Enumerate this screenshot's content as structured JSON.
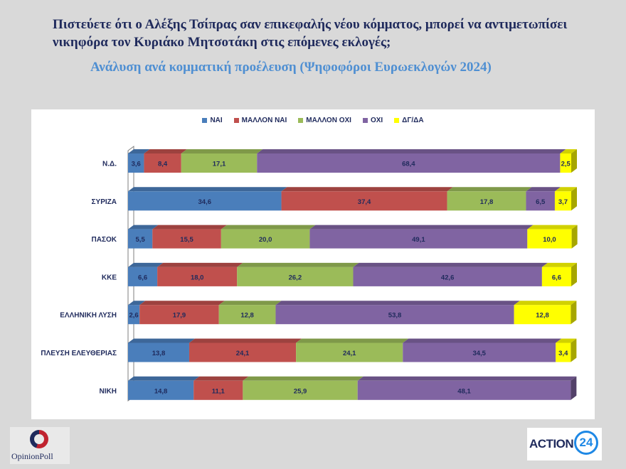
{
  "header": {
    "title": "Πιστεύετε ότι ο Αλέξης Τσίπρας σαν επικεφαλής νέου κόμματος, μπορεί να αντιμετωπίσει νικηφόρα τον Κυριάκο Μητσοτάκη στις επόμενες εκλογές;",
    "subtitle": "Ανάλυση ανά κομματική προέλευση (Ψηφοφόροι Ευρωεκλογών 2024)"
  },
  "logos": {
    "left": "OpinionPoll",
    "right_text": "ACTION",
    "right_number": "24"
  },
  "colors": {
    "nai": "#4a7ebb",
    "mallon_nai": "#c0504d",
    "mallon_oxi": "#9bbb59",
    "oxi": "#8064a2",
    "dgda": "#ffff00"
  },
  "chart_data": {
    "type": "bar",
    "orientation": "horizontal",
    "stacked": true,
    "categories": [
      "Ν.Δ.",
      "ΣΥΡΙΖΑ",
      "ΠΑΣΟΚ",
      "ΚΚΕ",
      "ΕΛΛΗΝΙΚΗ ΛΥΣΗ",
      "ΠΛΕΥΣΗ ΕΛΕΥΘΕΡΙΑΣ",
      "ΝΙΚΗ"
    ],
    "series": [
      {
        "name": "ΝΑΙ",
        "color": "#4a7ebb",
        "values": [
          3.6,
          34.6,
          5.5,
          6.6,
          2.6,
          13.8,
          14.8
        ],
        "labels": [
          "3,6",
          "34,6",
          "5,5",
          "6,6",
          "2,6",
          "13,8",
          "14,8"
        ]
      },
      {
        "name": "ΜΑΛΛΟΝ ΝΑΙ",
        "color": "#c0504d",
        "values": [
          8.4,
          37.4,
          15.5,
          18.0,
          17.9,
          24.1,
          11.1
        ],
        "labels": [
          "8,4",
          "37,4",
          "15,5",
          "18,0",
          "17,9",
          "24,1",
          "11,1"
        ]
      },
      {
        "name": "ΜΑΛΛΟΝ ΟΧΙ",
        "color": "#9bbb59",
        "values": [
          17.1,
          17.8,
          20.0,
          26.2,
          12.8,
          24.1,
          25.9
        ],
        "labels": [
          "17,1",
          "17,8",
          "20,0",
          "26,2",
          "12,8",
          "24,1",
          "25,9"
        ]
      },
      {
        "name": "ΟΧΙ",
        "color": "#8064a2",
        "values": [
          68.4,
          6.5,
          49.1,
          42.6,
          53.8,
          34.5,
          48.1
        ],
        "labels": [
          "68,4",
          "6,5",
          "49,1",
          "42,6",
          "53,8",
          "34,5",
          "48,1"
        ]
      },
      {
        "name": "ΔΓ/ΔΑ",
        "color": "#ffff00",
        "values": [
          2.5,
          3.7,
          10.0,
          6.6,
          12.8,
          3.4,
          0
        ],
        "labels": [
          "2,5",
          "3,7",
          "10,0",
          "6,6",
          "12,8",
          "3,4",
          ""
        ]
      }
    ],
    "xlim": [
      0,
      100
    ],
    "legend": "top-center",
    "grid": false
  }
}
